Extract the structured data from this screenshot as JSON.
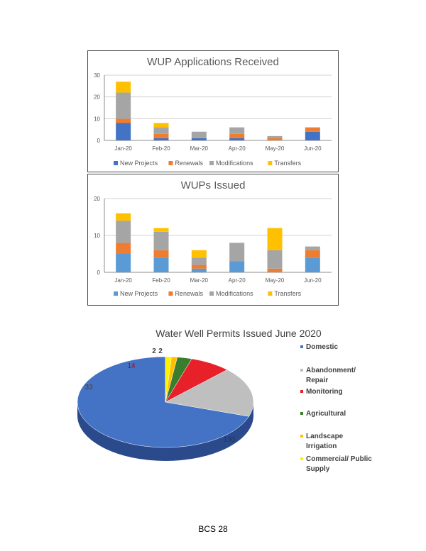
{
  "footer": {
    "page_label": "BCS 28"
  },
  "chart_data": [
    {
      "type": "bar",
      "stacked": true,
      "title": "WUP Applications Received",
      "categories": [
        "Jan-20",
        "Feb-20",
        "Mar-20",
        "Apr-20",
        "May-20",
        "Jun-20"
      ],
      "ylim": [
        0,
        30
      ],
      "yticks": [
        0,
        10,
        20,
        30
      ],
      "grid": true,
      "legend": "bottom",
      "series": [
        {
          "name": "New Projects",
          "color": "#4472c4",
          "values": [
            8,
            1,
            1,
            1,
            0,
            4
          ]
        },
        {
          "name": "Renewals",
          "color": "#ed7d31",
          "values": [
            2,
            2,
            0,
            2,
            1,
            2
          ]
        },
        {
          "name": "Modifications",
          "color": "#a5a5a5",
          "values": [
            12,
            3,
            3,
            3,
            1,
            0
          ]
        },
        {
          "name": "Transfers",
          "color": "#ffc000",
          "values": [
            5,
            2,
            0,
            0,
            0,
            0
          ]
        }
      ]
    },
    {
      "type": "bar",
      "stacked": true,
      "title": "WUPs Issued",
      "categories": [
        "Jan-20",
        "Feb-20",
        "Mar-20",
        "Apr-20",
        "May-20",
        "Jun-20"
      ],
      "ylim": [
        0,
        20
      ],
      "yticks": [
        0,
        10,
        20
      ],
      "grid": true,
      "legend": "bottom",
      "series": [
        {
          "name": "New Projects",
          "color": "#5b9bd5",
          "values": [
            5,
            4,
            1,
            3,
            0,
            4
          ]
        },
        {
          "name": "Renewals",
          "color": "#ed7d31",
          "values": [
            3,
            2,
            1,
            0,
            1,
            2
          ]
        },
        {
          "name": "Modifications",
          "color": "#a5a5a5",
          "values": [
            6,
            5,
            2,
            5,
            5,
            1
          ]
        },
        {
          "name": "Transfers",
          "color": "#ffc000",
          "values": [
            2,
            1,
            2,
            0,
            6,
            0
          ]
        }
      ]
    },
    {
      "type": "pie",
      "title": "Water Well Permits Issued June 2020",
      "legend": "right",
      "slices": [
        {
          "name": "Domestic",
          "value": 130,
          "label": "130",
          "color": "#4472c4"
        },
        {
          "name": "Abandonment/ Repair",
          "value": 33,
          "label": "33",
          "color": "#bfbfbf"
        },
        {
          "name": "Monitoring",
          "value": 14,
          "label": "14",
          "color": "#e8202a"
        },
        {
          "name": "Agricultural",
          "value": 5,
          "label": "",
          "color": "#3a7d2c"
        },
        {
          "name": "Landscape Irrigation",
          "value": 2,
          "label": "2",
          "color": "#ffc000"
        },
        {
          "name": "Commercial/ Public Supply",
          "value": 2,
          "label": "2",
          "color": "#fff200"
        }
      ]
    }
  ]
}
